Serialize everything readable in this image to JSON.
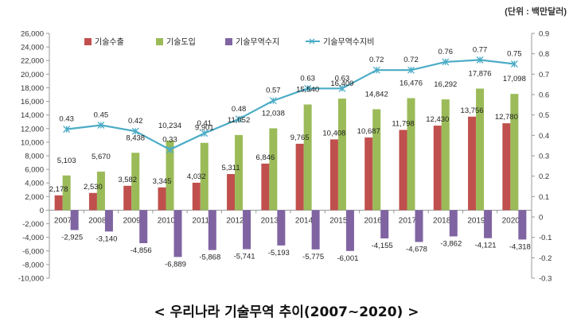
{
  "unit_label": "(단위 : 백만달러)",
  "caption": "<  우리나라  기술무역  추이(2007~2020)  >",
  "colors": {
    "export": "#C0504D",
    "import": "#9BBB59",
    "balance": "#8064A2",
    "ratio": "#4BACC6"
  },
  "chart_data": {
    "type": "bar",
    "title": "우리나라 기술무역 추이(2007~2020)",
    "categories": [
      "2007년",
      "2008년",
      "2009년",
      "2010년",
      "2011년",
      "2012년",
      "2013년",
      "2014년",
      "2015년",
      "2016년",
      "2017년",
      "2018년",
      "2019년",
      "2020년"
    ],
    "legend": [
      "기술수출",
      "기술도입",
      "기술무역수지",
      "기술무역수지비"
    ],
    "series": [
      {
        "name": "기술수출",
        "values": [
          2178,
          2530,
          3582,
          3345,
          4032,
          5311,
          6846,
          9765,
          10408,
          10687,
          11798,
          12430,
          13756,
          12780
        ]
      },
      {
        "name": "기술도입",
        "values": [
          5103,
          5670,
          8438,
          10234,
          9901,
          11052,
          12038,
          15540,
          16409,
          14842,
          16476,
          16292,
          17876,
          17098
        ]
      },
      {
        "name": "기술무역수지",
        "values": [
          -2925,
          -3140,
          -4856,
          -6889,
          -5868,
          -5741,
          -5193,
          -5775,
          -6001,
          -4155,
          -4678,
          -3862,
          -4121,
          -4318
        ]
      }
    ],
    "line_series": {
      "name": "기술무역수지비",
      "axis": "right",
      "values": [
        0.43,
        0.45,
        0.42,
        0.33,
        0.41,
        0.48,
        0.57,
        0.63,
        0.63,
        0.72,
        0.72,
        0.76,
        0.77,
        0.75
      ]
    },
    "left_ticks": [
      "-10,000",
      "-8,000",
      "-6,000",
      "-4,000",
      "-2,000",
      "0",
      "2,000",
      "4,000",
      "6,000",
      "8,000",
      "10,000",
      "12,000",
      "14,000",
      "16,000",
      "18,000",
      "20,000",
      "22,000",
      "24,000",
      "26,000"
    ],
    "right_ticks": [
      "-0.3",
      "-0.2",
      "-0.1",
      "0",
      "0.1",
      "0.2",
      "0.3",
      "0.4",
      "0.5",
      "0.6",
      "0.7",
      "0.8",
      "0.9"
    ],
    "bar_labels": {
      "export": [
        "2,178",
        "2,530",
        "3,582",
        "3,345",
        "4,032",
        "5,311",
        "6,846",
        "9,765",
        "10,408",
        "10,687",
        "11,798",
        "12,430",
        "13,756",
        "12,780"
      ],
      "import": [
        "5,103",
        "5,670",
        "8,438",
        "10,234",
        "9,901",
        "11,052",
        "12,038",
        "15,540",
        "16,409",
        "14,842",
        "16,476",
        "16,292",
        "17,876",
        "17,098"
      ],
      "balance": [
        "-2,925",
        "-3,140",
        "-4,856",
        "-6,889",
        "-5,868",
        "-5,741",
        "-5,193",
        "-5,775",
        "-6,001",
        "-4,155",
        "-4,678",
        "-3,862",
        "-4,121",
        "-4,318"
      ],
      "ratio": [
        "0.43",
        "0.45",
        "0.42",
        "0.33",
        "0.41",
        "0.48",
        "0.57",
        "0.63",
        "0.63",
        "0.72",
        "0.72",
        "0.76",
        "0.77",
        "0.75"
      ]
    },
    "ylim_left": [
      -10000,
      26000
    ],
    "ylim_right": [
      -0.3,
      0.9
    ],
    "legend_position": "top"
  }
}
